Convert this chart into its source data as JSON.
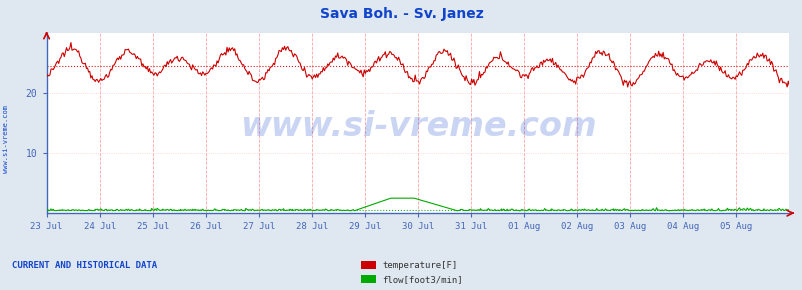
{
  "title": "Sava Boh. - Sv. Janez",
  "title_color": "#1144cc",
  "title_fontsize": 10,
  "bg_color": "#dfe8f0",
  "plot_bg_color": "#ffffff",
  "ylim": [
    0,
    30
  ],
  "yticks": [
    10,
    20
  ],
  "x_tick_labels": [
    "23 Jul",
    "24 Jul",
    "25 Jul",
    "26 Jul",
    "27 Jul",
    "28 Jul",
    "29 Jul",
    "30 Jul",
    "31 Jul",
    "01 Aug",
    "02 Aug",
    "03 Aug",
    "04 Aug",
    "05 Aug"
  ],
  "watermark": "www.si-vreme.com",
  "watermark_color": "#1144cc",
  "watermark_alpha": 0.22,
  "watermark_fontsize": 24,
  "side_label": "www.si-vreme.com",
  "side_label_color": "#1144cc",
  "grid_v_color": "#ff8888",
  "grid_h_color": "#ffcccc",
  "temp_color": "#cc0000",
  "flow_color": "#00aa00",
  "temp_mean": 24.5,
  "flow_mean": 0.5,
  "bottom_label": "CURRENT AND HISTORICAL DATA",
  "bottom_label_color": "#1144cc",
  "legend_items": [
    "temperature[F]",
    "flow[foot3/min]"
  ],
  "legend_colors": [
    "#cc0000",
    "#00aa00"
  ],
  "axis_color": "#4466bb",
  "tick_color": "#444444"
}
